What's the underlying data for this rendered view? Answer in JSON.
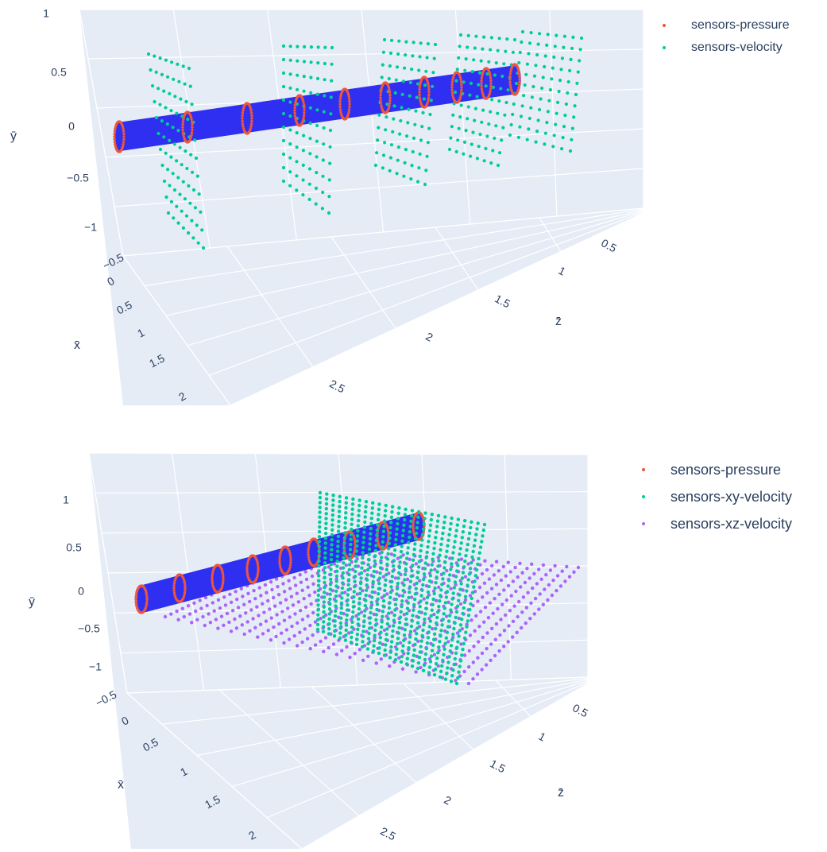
{
  "colors": {
    "pressure": "#ef553b",
    "velocity": "#00cc96",
    "xz_velocity": "#ab63fa",
    "pipe": "#2f2ff2",
    "pane": "#e5ecf6",
    "grid": "#ffffff"
  },
  "chart_data": [
    {
      "type": "scatter3d",
      "axes": {
        "x": {
          "title": "x̄",
          "ticks": [
            "0",
            "0.5",
            "1",
            "1.5",
            "2"
          ]
        },
        "y": {
          "title": "ȳ",
          "ticks": [
            "−1",
            "−0.5",
            "0",
            "0.5",
            "1"
          ]
        },
        "z": {
          "title": "z̄",
          "ticks": [
            "0.5",
            "1",
            "1.5",
            "2",
            "2.5"
          ]
        },
        "corner_tick": "−0.5"
      },
      "legend": {
        "placement": "top-right"
      },
      "series": [
        {
          "name": "sensors-pressure",
          "color_key": "pressure",
          "rings_z": [
            0.2,
            0.5,
            0.9,
            1.2,
            1.5,
            1.8,
            2.1,
            2.4,
            2.7
          ],
          "ring_radius": 0.12
        },
        {
          "name": "sensors-velocity",
          "color_key": "velocity",
          "planes_z": [
            0.5,
            1.2,
            1.9,
            2.4,
            2.7
          ],
          "rows": 11,
          "cols": 8,
          "y_range": [
            -1,
            1
          ]
        }
      ],
      "pipe": {
        "z_range": [
          0.2,
          2.8
        ],
        "radius": 0.12
      }
    },
    {
      "type": "scatter3d",
      "axes": {
        "x": {
          "title": "x̄",
          "ticks": [
            "0",
            "0.5",
            "1",
            "1.5",
            "2"
          ]
        },
        "y": {
          "title": "ȳ",
          "ticks": [
            "−1",
            "−0.5",
            "0",
            "0.5",
            "1"
          ]
        },
        "z": {
          "title": "z̄",
          "ticks": [
            "0.5",
            "1",
            "1.5",
            "2",
            "2.5"
          ]
        },
        "corner_tick": "−0.5"
      },
      "legend": {
        "placement": "top-right"
      },
      "series": [
        {
          "name": "sensors-pressure",
          "color_key": "pressure",
          "rings_z": [
            0.2,
            0.5,
            0.8,
            1.1,
            1.4,
            1.7,
            2.0,
            2.3,
            2.6
          ],
          "ring_radius": 0.12
        },
        {
          "name": "sensors-xy-velocity",
          "color_key": "velocity",
          "plane": "xy",
          "z": 1.5,
          "rows": 29,
          "cols": 26,
          "y_range": [
            -1,
            1.2
          ]
        },
        {
          "name": "sensors-xz-velocity",
          "color_key": "xz_velocity",
          "plane": "xz",
          "y": -0.15,
          "rows": 26,
          "cols": 24
        }
      ],
      "pipe": {
        "z_range": [
          0.2,
          2.8
        ],
        "radius": 0.12
      }
    }
  ]
}
